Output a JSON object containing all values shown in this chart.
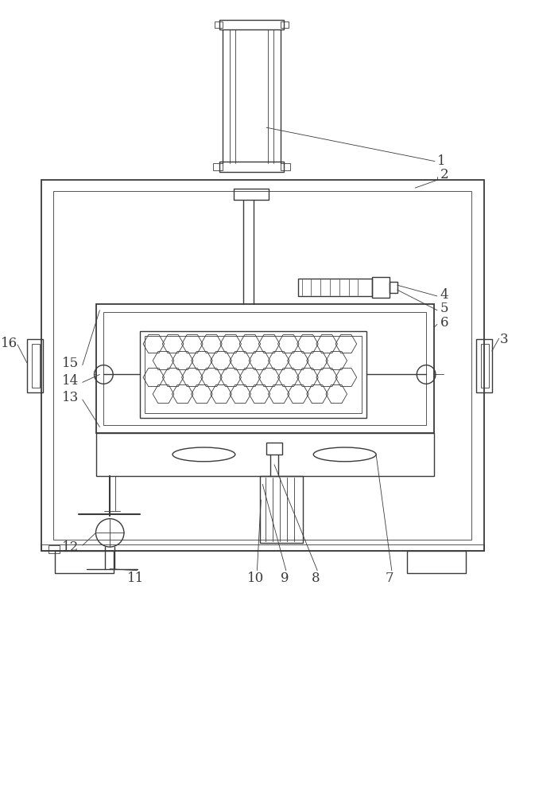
{
  "background_color": "#ffffff",
  "line_color": "#3a3a3a",
  "lw": 1.0,
  "tlw": 0.6,
  "fig_width": 6.73,
  "fig_height": 10.0
}
